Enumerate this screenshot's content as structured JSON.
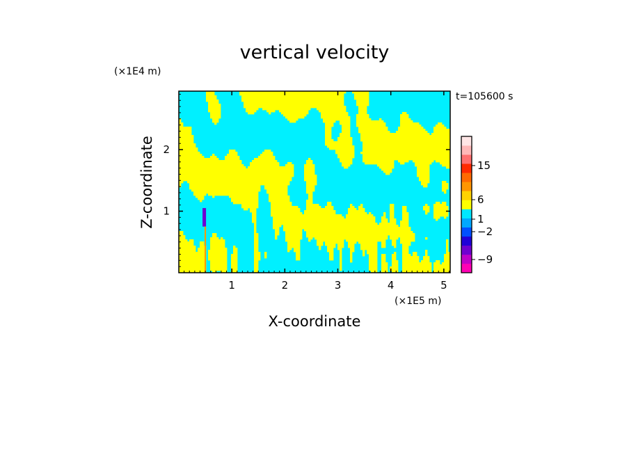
{
  "chart_data": {
    "type": "heatmap",
    "title": "vertical velocity",
    "xlabel": "X-coordinate",
    "ylabel": "Z-coordinate",
    "x_unit": "(×1E5 m)",
    "y_unit": "(×1E4 m)",
    "time_label": "t=105600 s",
    "xlim": [
      0,
      5.12
    ],
    "ylim": [
      0,
      2.95
    ],
    "x_ticks": [
      "1",
      "2",
      "3",
      "4",
      "5"
    ],
    "y_ticks": [
      "1",
      "2"
    ],
    "colorbar": {
      "tick_labels": [
        "15",
        "6",
        "1",
        "−2",
        "−9"
      ],
      "levels": [
        {
          "color": "#ff00b4"
        },
        {
          "color": "#c000c8"
        },
        {
          "color": "#7000d0"
        },
        {
          "color": "#2000d8"
        },
        {
          "color": "#0050ff"
        },
        {
          "color": "#00a8ff"
        },
        {
          "color": "#00e8ff"
        },
        {
          "color": "#ffff00"
        },
        {
          "color": "#ffd200"
        },
        {
          "color": "#ff9600"
        },
        {
          "color": "#ff6a00"
        },
        {
          "color": "#ff2a00"
        },
        {
          "color": "#ff7070"
        },
        {
          "color": "#ffb8b8"
        },
        {
          "color": "#ffe6e6"
        }
      ]
    },
    "field_colors": {
      "negative": "#00f0ff",
      "positive": "#ffff00",
      "strong": "#7000d0"
    }
  }
}
